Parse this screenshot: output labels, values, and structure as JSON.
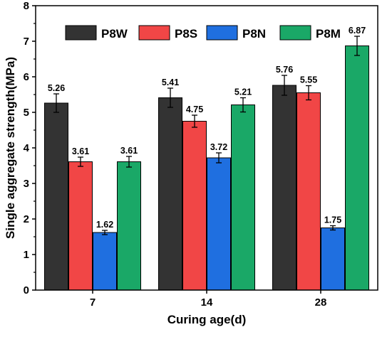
{
  "chart_data": {
    "type": "bar",
    "xlabel": "Curing age(d)",
    "ylabel": "Single aggregate strength(MPa)",
    "ylim": [
      0,
      8
    ],
    "yticks": [
      0,
      1,
      2,
      3,
      4,
      5,
      6,
      7,
      8
    ],
    "categories": [
      "7",
      "14",
      "28"
    ],
    "grid": false,
    "legend_position": "top",
    "series": [
      {
        "name": "P8W",
        "color": "#333333",
        "values": [
          5.26,
          5.41,
          5.76
        ],
        "labels": [
          "5.26",
          "5.41",
          "5.76"
        ],
        "errors": [
          0.26,
          0.27,
          0.28
        ]
      },
      {
        "name": "P8S",
        "color": "#f14646",
        "values": [
          3.61,
          4.75,
          5.55
        ],
        "labels": [
          "3.61",
          "4.75",
          "5.55"
        ],
        "errors": [
          0.13,
          0.17,
          0.2
        ]
      },
      {
        "name": "P8N",
        "color": "#1f6fe0",
        "values": [
          1.62,
          3.72,
          1.75
        ],
        "labels": [
          "1.62",
          "3.72",
          "1.75"
        ],
        "errors": [
          0.06,
          0.14,
          0.06
        ]
      },
      {
        "name": "P8M",
        "color": "#1aa867",
        "values": [
          3.61,
          5.21,
          6.87
        ],
        "labels": [
          "3.61",
          "5.21",
          "6.87"
        ],
        "errors": [
          0.15,
          0.2,
          0.27
        ]
      }
    ]
  }
}
